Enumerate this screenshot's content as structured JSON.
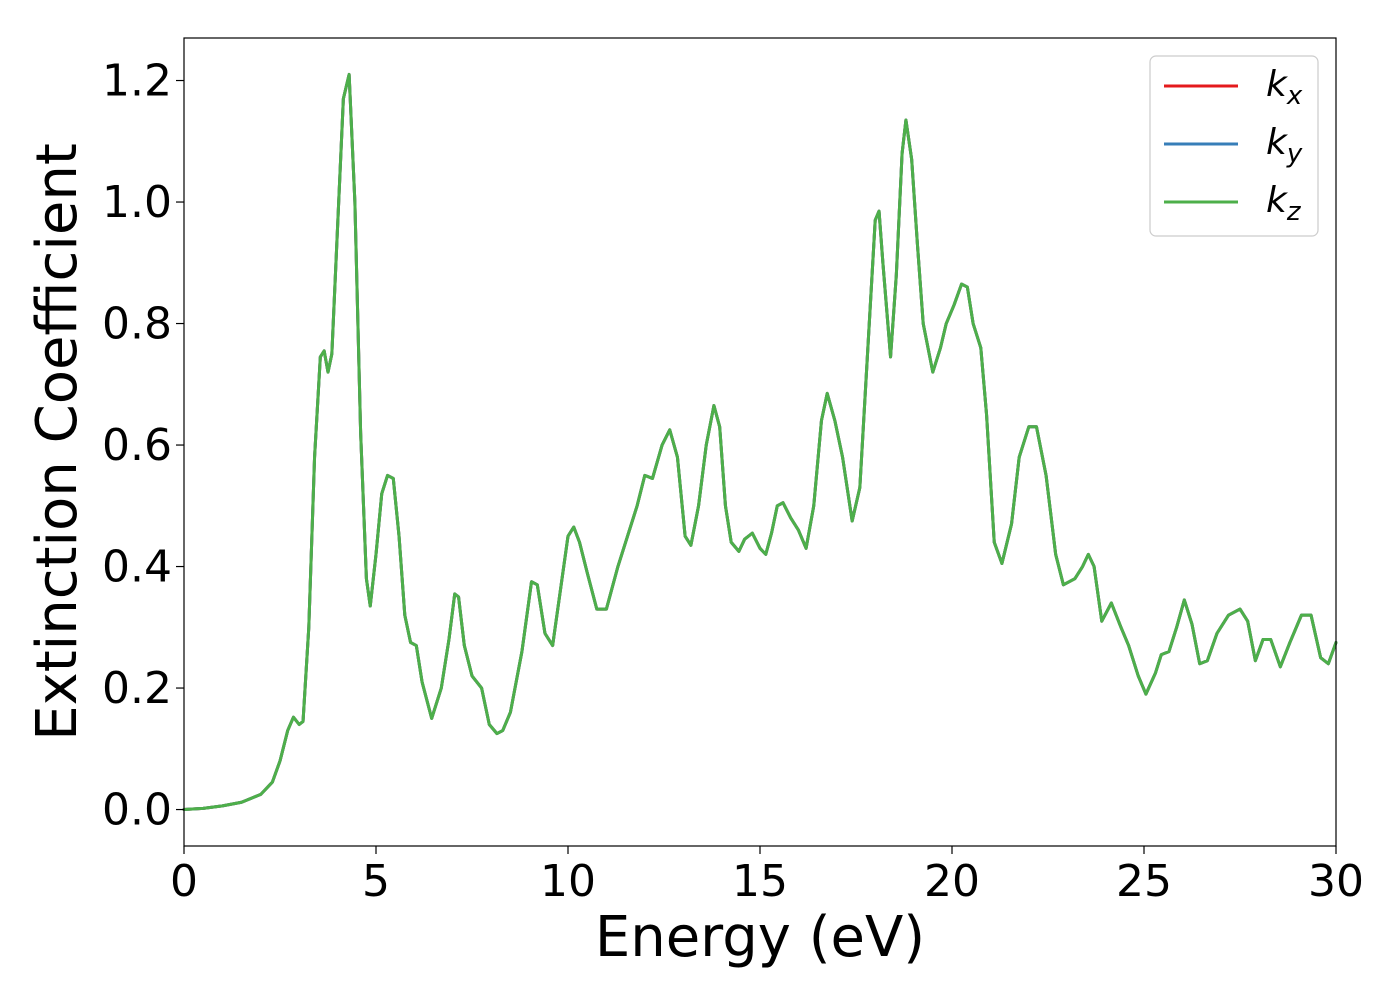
{
  "chart_data": {
    "type": "line",
    "xlabel": "Energy (eV)",
    "ylabel": "Extinction Coefficient",
    "xlim": [
      0,
      30
    ],
    "ylim": [
      -0.06,
      1.27
    ],
    "xticks": [
      0,
      5,
      10,
      15,
      20,
      25,
      30
    ],
    "xtick_labels": [
      "0",
      "5",
      "10",
      "15",
      "20",
      "25",
      "30"
    ],
    "yticks": [
      0.0,
      0.2,
      0.4,
      0.6,
      0.8,
      1.0,
      1.2
    ],
    "ytick_labels": [
      "0.0",
      "0.2",
      "0.4",
      "0.6",
      "0.8",
      "1.0",
      "1.2"
    ],
    "grid": false,
    "legend_position": "top-right",
    "x": [
      0,
      0.5,
      1.0,
      1.5,
      2.0,
      2.3,
      2.5,
      2.7,
      2.85,
      3.0,
      3.1,
      3.25,
      3.4,
      3.55,
      3.65,
      3.75,
      3.85,
      4.0,
      4.15,
      4.3,
      4.45,
      4.6,
      4.75,
      4.85,
      5.0,
      5.15,
      5.3,
      5.45,
      5.6,
      5.75,
      5.9,
      6.05,
      6.2,
      6.45,
      6.7,
      6.9,
      7.05,
      7.15,
      7.3,
      7.5,
      7.75,
      7.95,
      8.15,
      8.3,
      8.5,
      8.8,
      9.05,
      9.2,
      9.4,
      9.6,
      9.8,
      10.0,
      10.15,
      10.3,
      10.5,
      10.75,
      11.0,
      11.3,
      11.55,
      11.8,
      12.0,
      12.2,
      12.45,
      12.65,
      12.85,
      13.05,
      13.2,
      13.4,
      13.6,
      13.8,
      13.95,
      14.1,
      14.25,
      14.45,
      14.6,
      14.8,
      15.0,
      15.15,
      15.3,
      15.45,
      15.6,
      15.8,
      16.0,
      16.2,
      16.4,
      16.6,
      16.75,
      16.95,
      17.15,
      17.4,
      17.6,
      17.8,
      18.0,
      18.1,
      18.2,
      18.4,
      18.55,
      18.7,
      18.8,
      18.95,
      19.1,
      19.25,
      19.5,
      19.7,
      19.85,
      20.05,
      20.25,
      20.4,
      20.55,
      20.75,
      20.9,
      21.1,
      21.3,
      21.55,
      21.75,
      22.0,
      22.2,
      22.45,
      22.7,
      22.9,
      23.2,
      23.4,
      23.55,
      23.7,
      23.9,
      24.15,
      24.4,
      24.6,
      24.85,
      25.05,
      25.3,
      25.45,
      25.65,
      25.85,
      26.05,
      26.25,
      26.45,
      26.65,
      26.9,
      27.2,
      27.5,
      27.7,
      27.9,
      28.1,
      28.3,
      28.55,
      28.8,
      29.1,
      29.35,
      29.6,
      29.8,
      30.0
    ],
    "series": [
      {
        "name": "k_x",
        "label_base": "k",
        "label_sub": "x",
        "color": "#e41a1c",
        "values": [
          0.0,
          0.002,
          0.006,
          0.012,
          0.025,
          0.045,
          0.08,
          0.13,
          0.152,
          0.14,
          0.145,
          0.3,
          0.58,
          0.745,
          0.755,
          0.72,
          0.75,
          0.96,
          1.17,
          1.21,
          1.0,
          0.62,
          0.38,
          0.335,
          0.42,
          0.52,
          0.55,
          0.545,
          0.45,
          0.32,
          0.275,
          0.27,
          0.21,
          0.15,
          0.2,
          0.28,
          0.355,
          0.35,
          0.27,
          0.22,
          0.2,
          0.14,
          0.125,
          0.13,
          0.16,
          0.26,
          0.375,
          0.37,
          0.29,
          0.27,
          0.36,
          0.45,
          0.465,
          0.44,
          0.39,
          0.33,
          0.33,
          0.4,
          0.45,
          0.5,
          0.55,
          0.545,
          0.6,
          0.625,
          0.58,
          0.45,
          0.435,
          0.5,
          0.6,
          0.665,
          0.63,
          0.5,
          0.44,
          0.425,
          0.445,
          0.455,
          0.43,
          0.42,
          0.455,
          0.5,
          0.505,
          0.48,
          0.46,
          0.43,
          0.5,
          0.64,
          0.685,
          0.64,
          0.58,
          0.475,
          0.53,
          0.75,
          0.97,
          0.985,
          0.9,
          0.745,
          0.88,
          1.08,
          1.135,
          1.07,
          0.93,
          0.8,
          0.72,
          0.76,
          0.8,
          0.83,
          0.865,
          0.86,
          0.8,
          0.76,
          0.65,
          0.44,
          0.405,
          0.47,
          0.58,
          0.63,
          0.63,
          0.55,
          0.42,
          0.37,
          0.38,
          0.4,
          0.42,
          0.4,
          0.31,
          0.34,
          0.3,
          0.27,
          0.22,
          0.19,
          0.225,
          0.255,
          0.26,
          0.3,
          0.345,
          0.305,
          0.24,
          0.245,
          0.29,
          0.32,
          0.33,
          0.31,
          0.245,
          0.28,
          0.28,
          0.235,
          0.275,
          0.32,
          0.32,
          0.25,
          0.24,
          0.275
        ]
      },
      {
        "name": "k_y",
        "label_base": "k",
        "label_sub": "y",
        "color": "#377eb8",
        "values": [
          0.0,
          0.002,
          0.006,
          0.012,
          0.025,
          0.045,
          0.08,
          0.13,
          0.152,
          0.14,
          0.145,
          0.3,
          0.58,
          0.745,
          0.755,
          0.72,
          0.75,
          0.96,
          1.17,
          1.21,
          1.0,
          0.62,
          0.38,
          0.335,
          0.42,
          0.52,
          0.55,
          0.545,
          0.45,
          0.32,
          0.275,
          0.27,
          0.21,
          0.15,
          0.2,
          0.28,
          0.355,
          0.35,
          0.27,
          0.22,
          0.2,
          0.14,
          0.125,
          0.13,
          0.16,
          0.26,
          0.375,
          0.37,
          0.29,
          0.27,
          0.36,
          0.45,
          0.465,
          0.44,
          0.39,
          0.33,
          0.33,
          0.4,
          0.45,
          0.5,
          0.55,
          0.545,
          0.6,
          0.625,
          0.58,
          0.45,
          0.435,
          0.5,
          0.6,
          0.665,
          0.63,
          0.5,
          0.44,
          0.425,
          0.445,
          0.455,
          0.43,
          0.42,
          0.455,
          0.5,
          0.505,
          0.48,
          0.46,
          0.43,
          0.5,
          0.64,
          0.685,
          0.64,
          0.58,
          0.475,
          0.53,
          0.75,
          0.97,
          0.985,
          0.9,
          0.745,
          0.88,
          1.08,
          1.135,
          1.07,
          0.93,
          0.8,
          0.72,
          0.76,
          0.8,
          0.83,
          0.865,
          0.86,
          0.8,
          0.76,
          0.65,
          0.44,
          0.405,
          0.47,
          0.58,
          0.63,
          0.63,
          0.55,
          0.42,
          0.37,
          0.38,
          0.4,
          0.42,
          0.4,
          0.31,
          0.34,
          0.3,
          0.27,
          0.22,
          0.19,
          0.225,
          0.255,
          0.26,
          0.3,
          0.345,
          0.305,
          0.24,
          0.245,
          0.29,
          0.32,
          0.33,
          0.31,
          0.245,
          0.28,
          0.28,
          0.235,
          0.275,
          0.32,
          0.32,
          0.25,
          0.24,
          0.275
        ]
      },
      {
        "name": "k_z",
        "label_base": "k",
        "label_sub": "z",
        "color": "#4daf4a",
        "values": [
          0.0,
          0.002,
          0.006,
          0.012,
          0.025,
          0.045,
          0.08,
          0.13,
          0.152,
          0.14,
          0.145,
          0.3,
          0.58,
          0.745,
          0.755,
          0.72,
          0.75,
          0.96,
          1.17,
          1.21,
          1.0,
          0.62,
          0.38,
          0.335,
          0.42,
          0.52,
          0.55,
          0.545,
          0.45,
          0.32,
          0.275,
          0.27,
          0.21,
          0.15,
          0.2,
          0.28,
          0.355,
          0.35,
          0.27,
          0.22,
          0.2,
          0.14,
          0.125,
          0.13,
          0.16,
          0.26,
          0.375,
          0.37,
          0.29,
          0.27,
          0.36,
          0.45,
          0.465,
          0.44,
          0.39,
          0.33,
          0.33,
          0.4,
          0.45,
          0.5,
          0.55,
          0.545,
          0.6,
          0.625,
          0.58,
          0.45,
          0.435,
          0.5,
          0.6,
          0.665,
          0.63,
          0.5,
          0.44,
          0.425,
          0.445,
          0.455,
          0.43,
          0.42,
          0.455,
          0.5,
          0.505,
          0.48,
          0.46,
          0.43,
          0.5,
          0.64,
          0.685,
          0.64,
          0.58,
          0.475,
          0.53,
          0.75,
          0.97,
          0.985,
          0.9,
          0.745,
          0.88,
          1.08,
          1.135,
          1.07,
          0.93,
          0.8,
          0.72,
          0.76,
          0.8,
          0.83,
          0.865,
          0.86,
          0.8,
          0.76,
          0.65,
          0.44,
          0.405,
          0.47,
          0.58,
          0.63,
          0.63,
          0.55,
          0.42,
          0.37,
          0.38,
          0.4,
          0.42,
          0.4,
          0.31,
          0.34,
          0.3,
          0.27,
          0.22,
          0.19,
          0.225,
          0.255,
          0.26,
          0.3,
          0.345,
          0.305,
          0.24,
          0.245,
          0.29,
          0.32,
          0.33,
          0.31,
          0.245,
          0.28,
          0.28,
          0.235,
          0.275,
          0.32,
          0.32,
          0.25,
          0.24,
          0.275
        ]
      }
    ]
  }
}
